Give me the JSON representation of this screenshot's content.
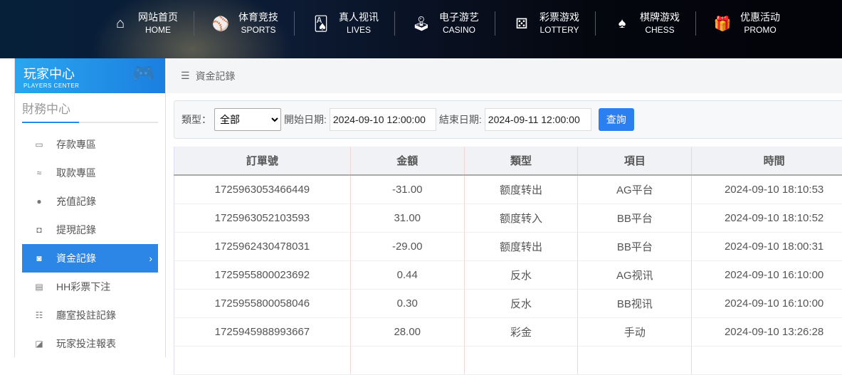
{
  "nav": [
    {
      "cn": "网站首页",
      "en": "HOME",
      "icon": "home-icon",
      "glyph": "⌂"
    },
    {
      "cn": "体育竞技",
      "en": "SPORTS",
      "icon": "ball-icon",
      "glyph": "⚾"
    },
    {
      "cn": "真人视讯",
      "en": "LIVES",
      "icon": "cards-icon",
      "glyph": "🂡"
    },
    {
      "cn": "电子游艺",
      "en": "CASINO",
      "icon": "joystick-icon",
      "glyph": "🕹"
    },
    {
      "cn": "彩票游戏",
      "en": "LOTTERY",
      "icon": "dice-icon",
      "glyph": "⚄"
    },
    {
      "cn": "棋牌游戏",
      "en": "CHESS",
      "icon": "spade-icon",
      "glyph": "♠"
    },
    {
      "cn": "优惠活动",
      "en": "PROMO",
      "icon": "gift-icon",
      "glyph": "🎁"
    }
  ],
  "sidebar": {
    "title_cn": "玩家中心",
    "title_en": "PLAYERS CENTER",
    "section": "財務中心",
    "items": [
      {
        "label": "存款專區",
        "icon": "card-icon",
        "glyph": "▭"
      },
      {
        "label": "取款專區",
        "icon": "hand-cash-icon",
        "glyph": "≈"
      },
      {
        "label": "充值記錄",
        "icon": "money-bag-icon",
        "glyph": "●"
      },
      {
        "label": "提現記錄",
        "icon": "wallet-icon",
        "glyph": "◘"
      },
      {
        "label": "資金記錄",
        "icon": "funds-icon",
        "glyph": "◙",
        "active": true
      },
      {
        "label": "HH彩票下注",
        "icon": "list-icon",
        "glyph": "▤"
      },
      {
        "label": "廳室投註記錄",
        "icon": "list-bullets-icon",
        "glyph": "☷"
      },
      {
        "label": "玩家投注報表",
        "icon": "chart-icon",
        "glyph": "◪"
      }
    ]
  },
  "breadcrumb": "資金記錄",
  "filter": {
    "type_label": "類型：",
    "type_value": "全部",
    "start_label": "開始日期:",
    "start_value": "2024-09-10 12:00:00",
    "end_label": "結束日期:",
    "end_value": "2024-09-11 12:00:00",
    "query": "查詢"
  },
  "table": {
    "headers": [
      "訂單號",
      "金額",
      "類型",
      "項目",
      "時間"
    ],
    "rows": [
      [
        "1725963053466449",
        "-31.00",
        "额度转出",
        "AG平台",
        "2024-09-10 18:10:53"
      ],
      [
        "1725963052103593",
        "31.00",
        "额度转入",
        "BB平台",
        "2024-09-10 18:10:52"
      ],
      [
        "1725962430478031",
        "-29.00",
        "额度转出",
        "BB平台",
        "2024-09-10 18:00:31"
      ],
      [
        "1725955800023692",
        "0.44",
        "反水",
        "AG视讯",
        "2024-09-10 16:10:00"
      ],
      [
        "1725955800058046",
        "0.30",
        "反水",
        "BB视讯",
        "2024-09-10 16:10:00"
      ],
      [
        "1725945988993667",
        "28.00",
        "彩金",
        "手动",
        "2024-09-10 13:26:28"
      ]
    ]
  }
}
